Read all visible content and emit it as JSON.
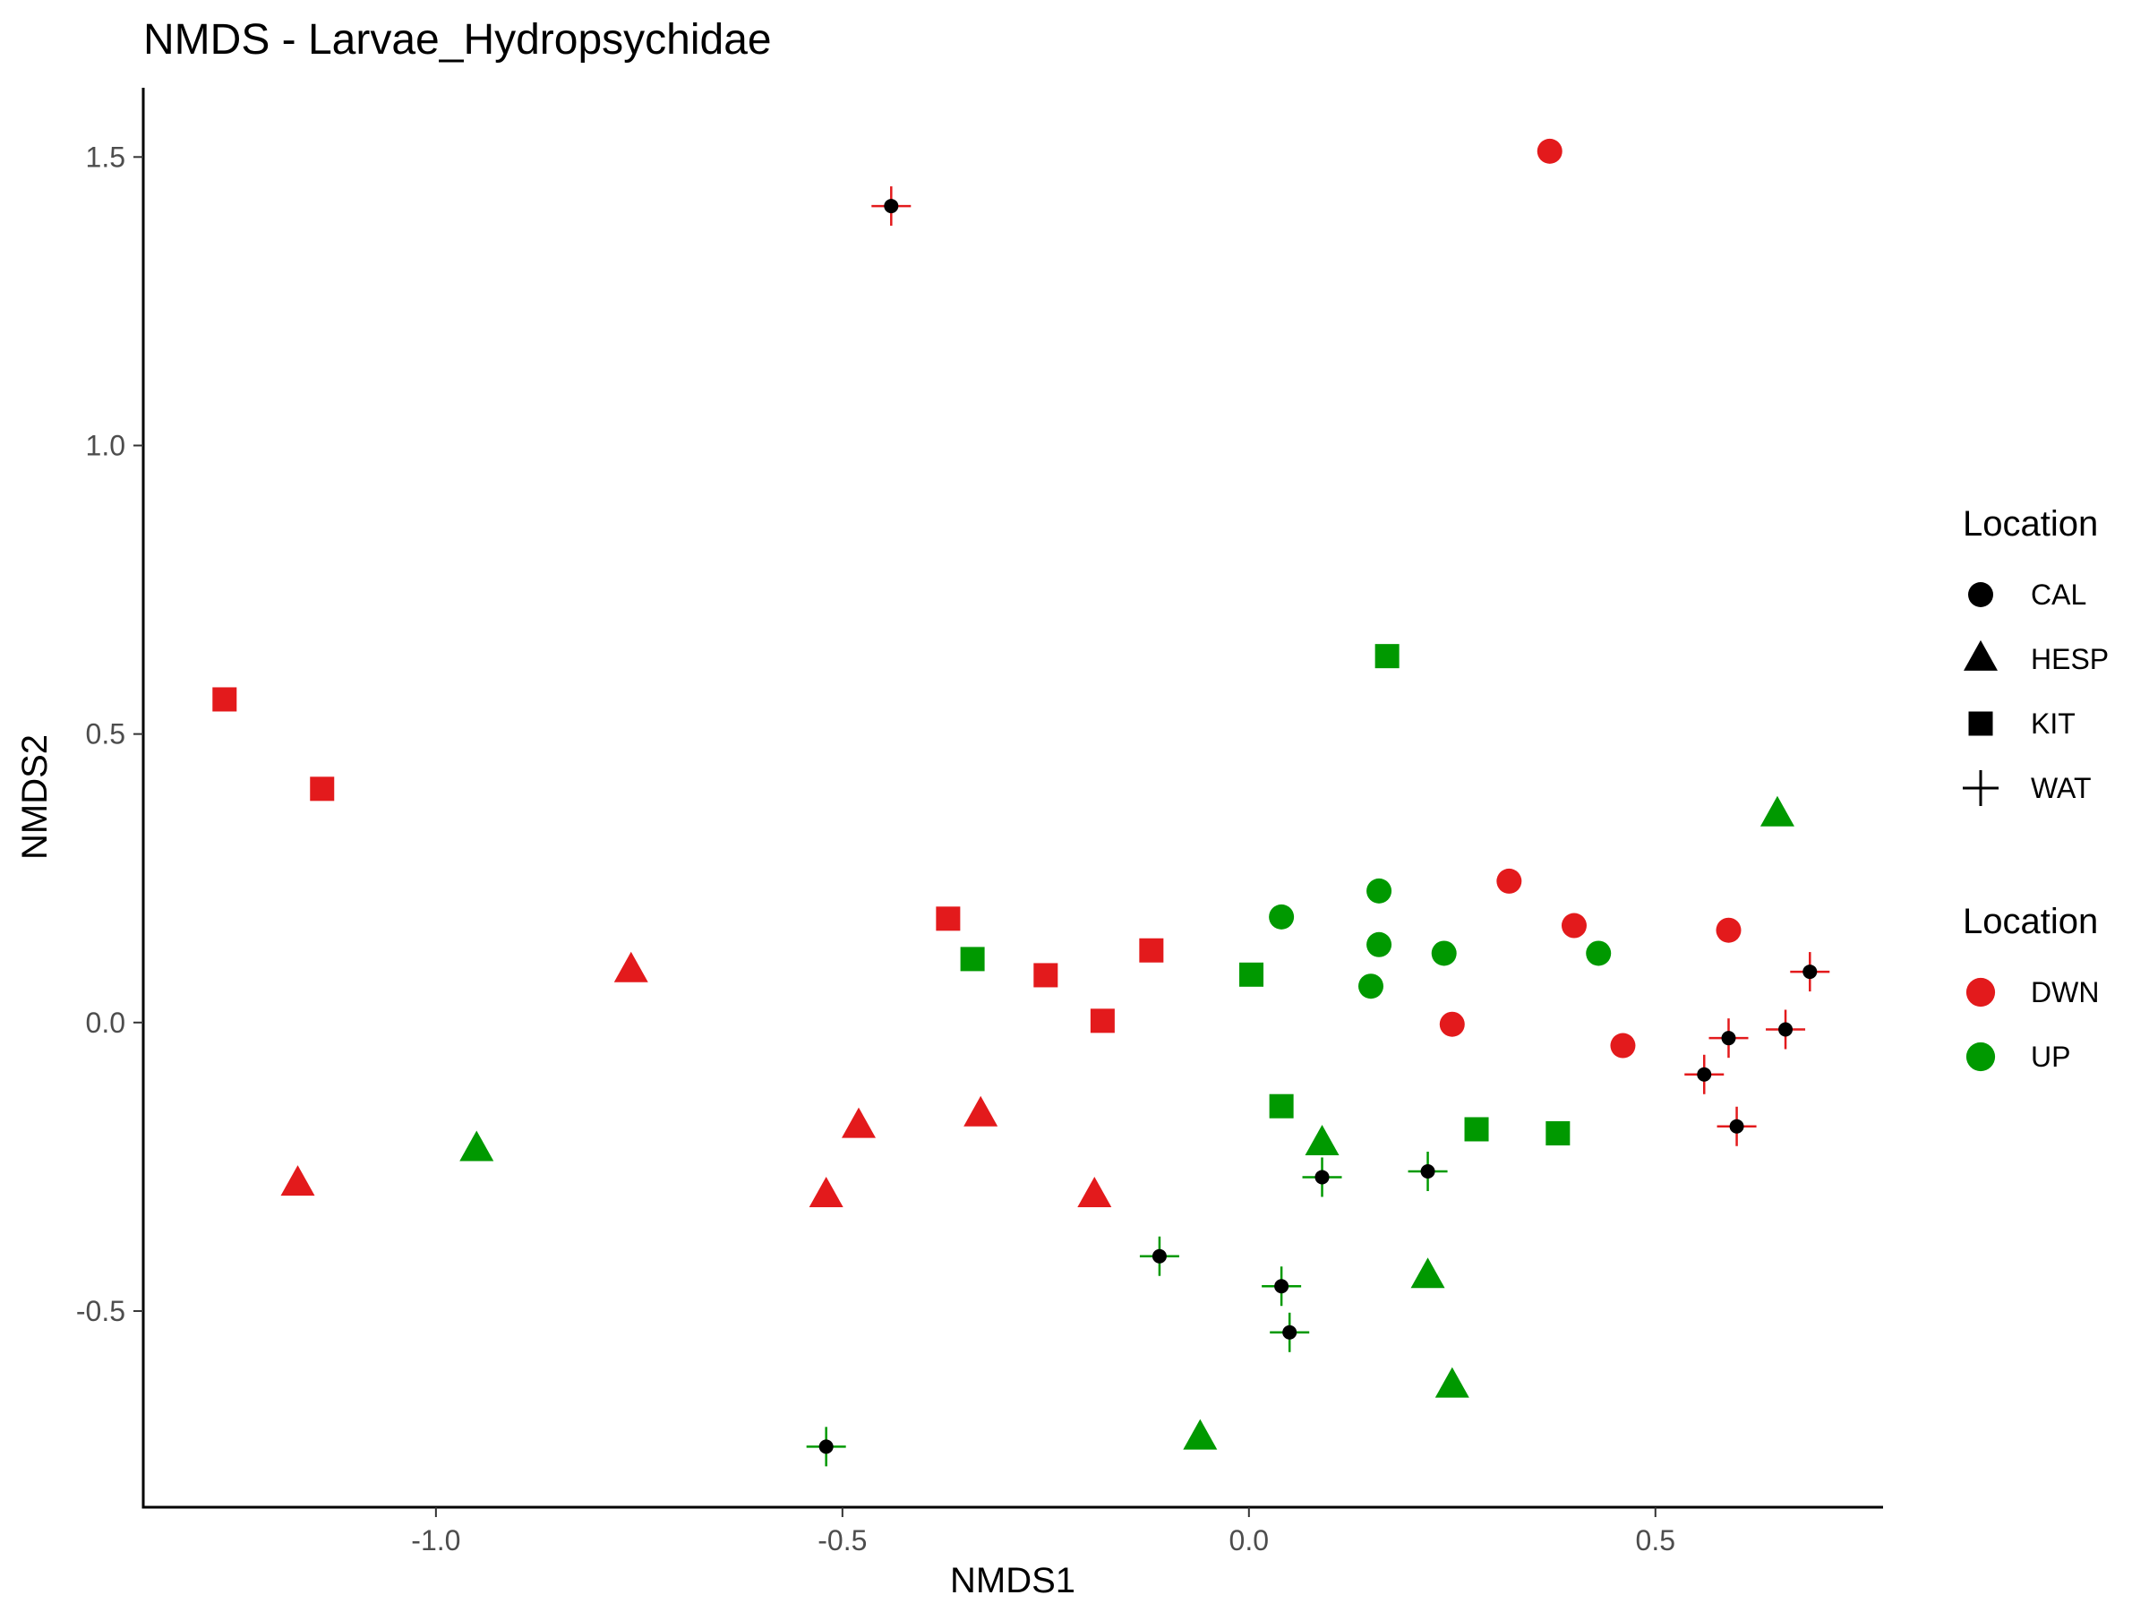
{
  "chart_data": {
    "type": "scatter",
    "title": "NMDS - Larvae_Hydropsychidae",
    "xlabel": "NMDS1",
    "ylabel": "NMDS2",
    "xlim": [
      -1.36,
      0.78
    ],
    "ylim": [
      -0.84,
      1.62
    ],
    "xticks": [
      -1.0,
      -0.5,
      0.0,
      0.5
    ],
    "xtick_labels": [
      "-1.0",
      "-0.5",
      "0.0",
      "0.5"
    ],
    "yticks": [
      -0.5,
      0.0,
      0.5,
      1.0,
      1.5
    ],
    "ytick_labels": [
      "-0.5",
      "0.0",
      "0.5",
      "1.0",
      "1.5"
    ],
    "grid": false,
    "legend_placement": "right",
    "colors": {
      "DWN": "#e31a1c",
      "UP": "#009900",
      "neutral": "#000000"
    },
    "legends": [
      {
        "title": "Location",
        "entries": [
          {
            "label": "CAL",
            "shape": "circle"
          },
          {
            "label": "HESP",
            "shape": "triangle"
          },
          {
            "label": "KIT",
            "shape": "square"
          },
          {
            "label": "WAT",
            "shape": "plus"
          }
        ]
      },
      {
        "title": "Location",
        "entries": [
          {
            "label": "DWN",
            "color": "#e31a1c"
          },
          {
            "label": "UP",
            "color": "#009900"
          }
        ]
      }
    ],
    "series": [
      {
        "name": "CAL",
        "shape": "circle",
        "points": [
          {
            "x": 0.37,
            "y": 1.51,
            "group": "DWN"
          },
          {
            "x": 0.32,
            "y": 0.245,
            "group": "DWN"
          },
          {
            "x": 0.4,
            "y": 0.168,
            "group": "DWN"
          },
          {
            "x": 0.59,
            "y": 0.16,
            "group": "DWN"
          },
          {
            "x": 0.25,
            "y": -0.003,
            "group": "DWN"
          },
          {
            "x": 0.46,
            "y": -0.04,
            "group": "DWN"
          },
          {
            "x": 0.04,
            "y": 0.183,
            "group": "UP"
          },
          {
            "x": 0.16,
            "y": 0.228,
            "group": "UP"
          },
          {
            "x": 0.16,
            "y": 0.135,
            "group": "UP"
          },
          {
            "x": 0.24,
            "y": 0.12,
            "group": "UP"
          },
          {
            "x": 0.43,
            "y": 0.12,
            "group": "UP"
          },
          {
            "x": 0.15,
            "y": 0.063,
            "group": "UP"
          }
        ]
      },
      {
        "name": "HESP",
        "shape": "triangle",
        "points": [
          {
            "x": -0.76,
            "y": 0.09,
            "group": "DWN"
          },
          {
            "x": -0.48,
            "y": -0.18,
            "group": "DWN"
          },
          {
            "x": -0.33,
            "y": -0.16,
            "group": "DWN"
          },
          {
            "x": -1.17,
            "y": -0.28,
            "group": "DWN"
          },
          {
            "x": -0.52,
            "y": -0.3,
            "group": "DWN"
          },
          {
            "x": -0.19,
            "y": -0.3,
            "group": "DWN"
          },
          {
            "x": 0.65,
            "y": 0.36,
            "group": "UP"
          },
          {
            "x": -0.95,
            "y": -0.22,
            "group": "UP"
          },
          {
            "x": 0.09,
            "y": -0.21,
            "group": "UP"
          },
          {
            "x": 0.22,
            "y": -0.44,
            "group": "UP"
          },
          {
            "x": 0.25,
            "y": -0.63,
            "group": "UP"
          },
          {
            "x": -0.06,
            "y": -0.72,
            "group": "UP"
          }
        ]
      },
      {
        "name": "KIT",
        "shape": "square",
        "points": [
          {
            "x": -1.26,
            "y": 0.56,
            "group": "DWN"
          },
          {
            "x": -1.14,
            "y": 0.405,
            "group": "DWN"
          },
          {
            "x": -0.37,
            "y": 0.18,
            "group": "DWN"
          },
          {
            "x": -0.12,
            "y": 0.125,
            "group": "DWN"
          },
          {
            "x": -0.25,
            "y": 0.082,
            "group": "DWN"
          },
          {
            "x": -0.18,
            "y": 0.003,
            "group": "DWN"
          },
          {
            "x": 0.17,
            "y": 0.635,
            "group": "UP"
          },
          {
            "x": -0.34,
            "y": 0.11,
            "group": "UP"
          },
          {
            "x": 0.003,
            "y": 0.083,
            "group": "UP"
          },
          {
            "x": 0.04,
            "y": -0.145,
            "group": "UP"
          },
          {
            "x": 0.28,
            "y": -0.185,
            "group": "UP"
          },
          {
            "x": 0.38,
            "y": -0.192,
            "group": "UP"
          }
        ]
      },
      {
        "name": "WAT",
        "shape": "plus-with-dot",
        "points": [
          {
            "x": -0.44,
            "y": 1.415,
            "group": "DWN"
          },
          {
            "x": 0.69,
            "y": 0.088,
            "group": "DWN"
          },
          {
            "x": 0.59,
            "y": -0.027,
            "group": "DWN"
          },
          {
            "x": 0.66,
            "y": -0.012,
            "group": "DWN"
          },
          {
            "x": 0.56,
            "y": -0.09,
            "group": "DWN"
          },
          {
            "x": 0.6,
            "y": -0.18,
            "group": "DWN"
          },
          {
            "x": 0.09,
            "y": -0.268,
            "group": "UP"
          },
          {
            "x": 0.22,
            "y": -0.258,
            "group": "UP"
          },
          {
            "x": -0.11,
            "y": -0.405,
            "group": "UP"
          },
          {
            "x": 0.04,
            "y": -0.457,
            "group": "UP"
          },
          {
            "x": 0.05,
            "y": -0.537,
            "group": "UP"
          },
          {
            "x": -0.52,
            "y": -0.735,
            "group": "UP"
          }
        ]
      }
    ]
  }
}
